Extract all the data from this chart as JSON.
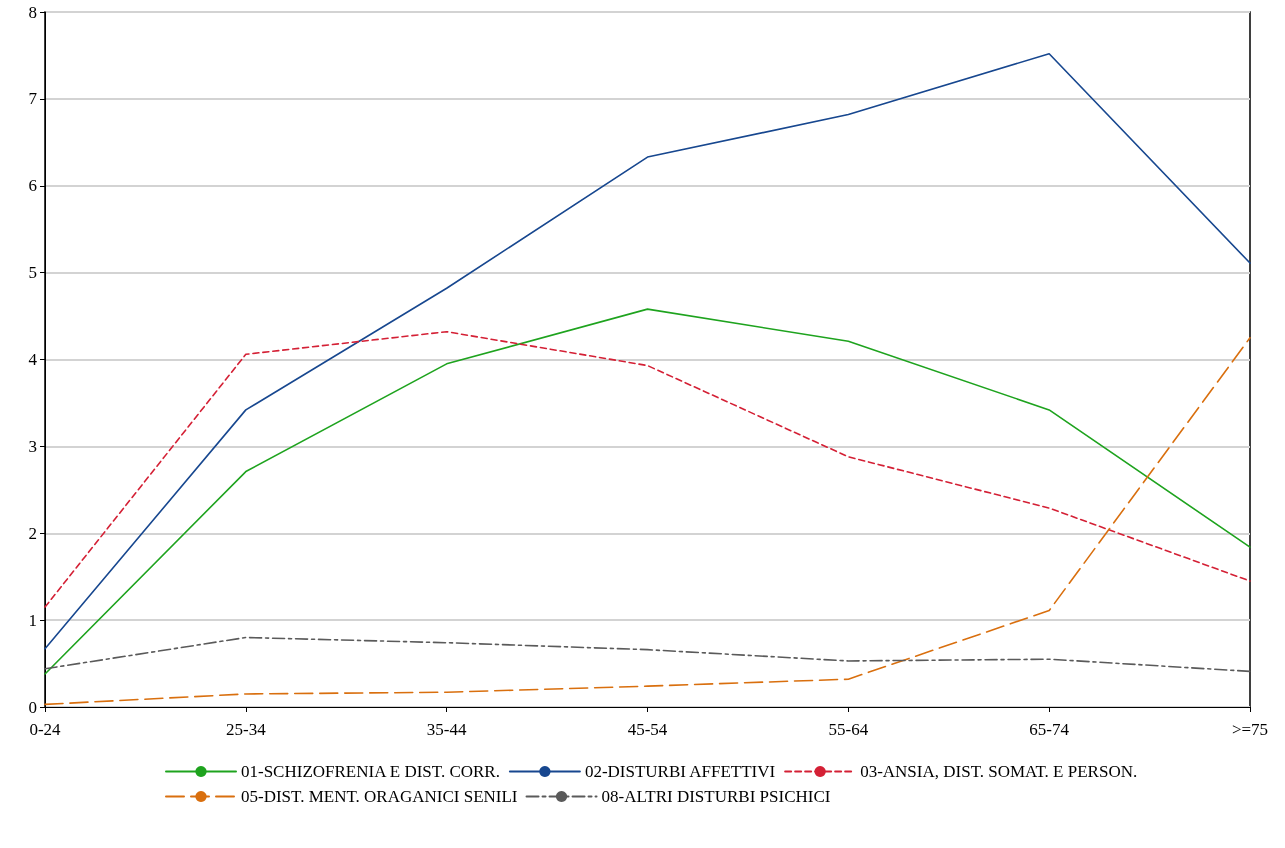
{
  "chart_data": {
    "type": "line",
    "categories": [
      "0-24",
      "25-34",
      "35-44",
      "45-54",
      "55-64",
      "65-74",
      ">=75"
    ],
    "series": [
      {
        "name": "01-SCHIZOFRENIA E DIST. CORR.",
        "color": "#1ea31e",
        "line_style": "solid",
        "values": [
          0.38,
          2.71,
          3.95,
          4.58,
          4.21,
          3.42,
          1.84
        ]
      },
      {
        "name": "02-DISTURBI AFFETTIVI",
        "color": "#17478f",
        "line_style": "solid",
        "values": [
          0.67,
          3.42,
          4.82,
          6.33,
          6.82,
          7.52,
          5.11
        ]
      },
      {
        "name": "03-ANSIA, DIST. SOMAT. E PERSON.",
        "color": "#d42035",
        "line_style": "dotted",
        "values": [
          1.15,
          4.06,
          4.32,
          3.93,
          2.88,
          2.29,
          1.45
        ]
      },
      {
        "name": "05-DIST. MENT. ORAGANICI SENILI",
        "color": "#d96f0e",
        "line_style": "dashed",
        "values": [
          0.03,
          0.15,
          0.17,
          0.24,
          0.32,
          1.11,
          4.25
        ]
      },
      {
        "name": "08-ALTRI DISTURBI PSICHICI",
        "color": "#5a5a5a",
        "line_style": "dashdot",
        "values": [
          0.44,
          0.8,
          0.74,
          0.66,
          0.53,
          0.55,
          0.41
        ]
      }
    ],
    "ylim": [
      0,
      8
    ],
    "yticks": [
      0,
      1,
      2,
      3,
      4,
      5,
      6,
      7,
      8
    ],
    "grid": "y",
    "legend": "bottom",
    "marker": "none"
  }
}
